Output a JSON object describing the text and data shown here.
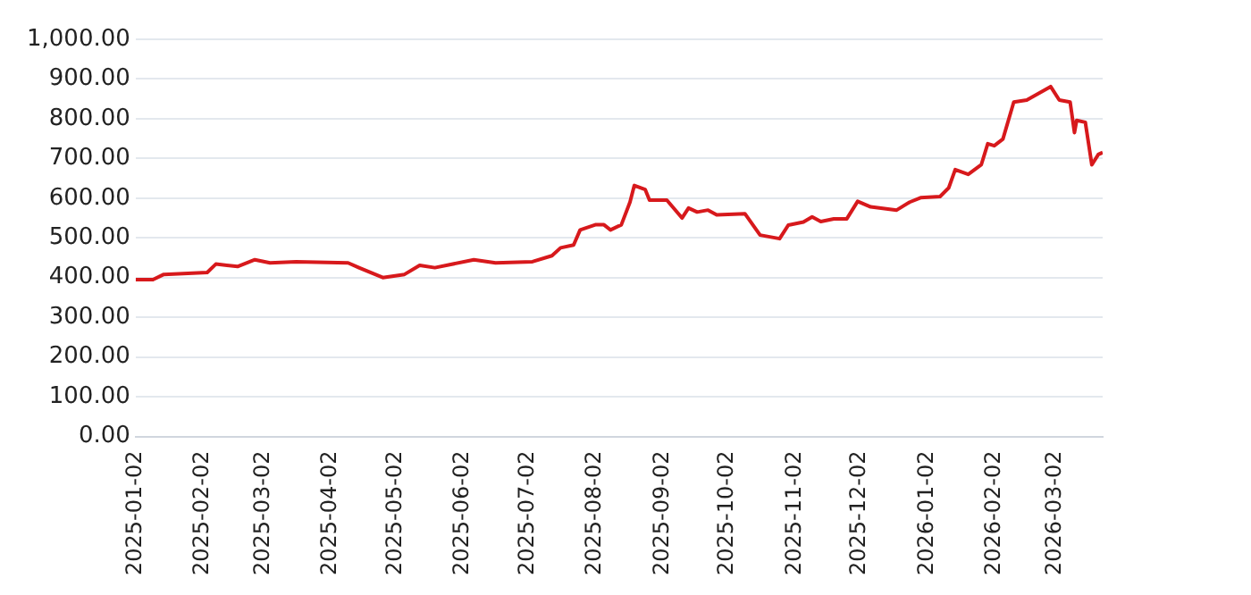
{
  "chart_data": {
    "type": "line",
    "x": [
      "2025-01-02",
      "2025-01-10",
      "2025-01-15",
      "2025-02-04",
      "2025-02-08",
      "2025-02-18",
      "2025-02-26",
      "2025-03-05",
      "2025-03-17",
      "2025-04-10",
      "2025-04-15",
      "2025-04-26",
      "2025-05-06",
      "2025-05-13",
      "2025-05-20",
      "2025-06-07",
      "2025-06-17",
      "2025-07-04",
      "2025-07-13",
      "2025-07-17",
      "2025-07-23",
      "2025-07-26",
      "2025-08-02",
      "2025-08-06",
      "2025-08-09",
      "2025-08-14",
      "2025-08-18",
      "2025-08-20",
      "2025-08-25",
      "2025-08-27",
      "2025-09-04",
      "2025-09-11",
      "2025-09-14",
      "2025-09-18",
      "2025-09-23",
      "2025-09-27",
      "2025-10-10",
      "2025-10-17",
      "2025-10-26",
      "2025-10-30",
      "2025-11-06",
      "2025-11-10",
      "2025-11-14",
      "2025-11-20",
      "2025-11-26",
      "2025-12-01",
      "2025-12-07",
      "2025-12-19",
      "2025-12-25",
      "2025-12-30",
      "2026-01-08",
      "2026-01-12",
      "2026-01-15",
      "2026-01-21",
      "2026-01-27",
      "2026-01-30",
      "2026-02-02",
      "2026-02-06",
      "2026-02-11",
      "2026-02-17",
      "2026-02-28",
      "2026-03-04",
      "2026-03-09",
      "2026-03-11",
      "2026-03-12",
      "2026-03-16",
      "2026-03-19",
      "2026-03-22",
      "2026-03-24"
    ],
    "series": [
      {
        "color": "#d7191c",
        "values": [
          395,
          395,
          408,
          413,
          434,
          428,
          445,
          437,
          440,
          437,
          425,
          400,
          408,
          431,
          425,
          445,
          437,
          440,
          455,
          475,
          482,
          520,
          533,
          533,
          520,
          533,
          590,
          632,
          622,
          595,
          595,
          550,
          575,
          565,
          570,
          558,
          561,
          507,
          498,
          532,
          540,
          553,
          541,
          548,
          548,
          592,
          578,
          570,
          590,
          601,
          604,
          626,
          672,
          660,
          684,
          737,
          732,
          749,
          842,
          847,
          881,
          847,
          842,
          765,
          796,
          791,
          684,
          710,
          715
        ]
      }
    ],
    "xlim": [
      "2025-01-02",
      "2026-03-24"
    ],
    "xticks": [
      "2025-01-02",
      "2025-02-02",
      "2025-03-02",
      "2025-04-02",
      "2025-05-02",
      "2025-06-02",
      "2025-07-02",
      "2025-08-02",
      "2025-09-02",
      "2025-10-02",
      "2025-11-02",
      "2025-12-02",
      "2026-01-02",
      "2026-02-02",
      "2026-03-02"
    ],
    "ylim": [
      0,
      1000
    ],
    "yticks": [
      {
        "value": 0,
        "label": "0.00"
      },
      {
        "value": 100,
        "label": "100.00"
      },
      {
        "value": 200,
        "label": "200.00"
      },
      {
        "value": 300,
        "label": "300.00"
      },
      {
        "value": 400,
        "label": "400.00"
      },
      {
        "value": 500,
        "label": "500.00"
      },
      {
        "value": 600,
        "label": "600.00"
      },
      {
        "value": 700,
        "label": "700.00"
      },
      {
        "value": 800,
        "label": "800.00"
      },
      {
        "value": 900,
        "label": "900.00"
      },
      {
        "value": 1000,
        "label": "1,000.00"
      }
    ],
    "grid": "y",
    "marker": "none",
    "line_style": "solid",
    "legend": false
  }
}
